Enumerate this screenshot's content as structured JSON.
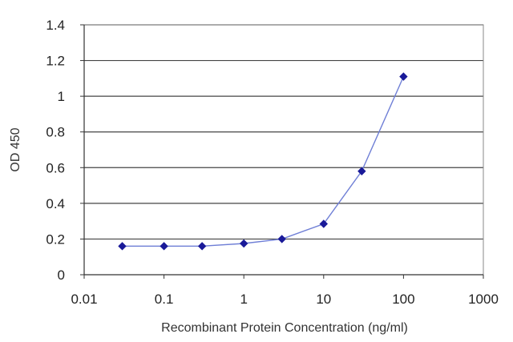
{
  "chart_data": {
    "type": "line",
    "title": "",
    "xlabel": "Recombinant Protein Concentration (ng/ml)",
    "ylabel": "OD 450",
    "x_scale": "log",
    "xlim": [
      0.01,
      1000
    ],
    "ylim": [
      0,
      1.4
    ],
    "x_ticks": [
      0.01,
      0.1,
      1,
      10,
      100,
      1000
    ],
    "x_tick_labels": [
      "0.01",
      "0.1",
      "1",
      "10",
      "100",
      "1000"
    ],
    "y_ticks": [
      0,
      0.2,
      0.4,
      0.6,
      0.8,
      1,
      1.2,
      1.4
    ],
    "y_tick_labels": [
      "0",
      "0.2",
      "0.4",
      "0.6",
      "0.8",
      "1",
      "1.2",
      "1.4"
    ],
    "grid": "horizontal",
    "legend": "none",
    "series": [
      {
        "x": [
          0.03,
          0.1,
          0.3,
          1,
          3,
          10,
          30,
          100
        ],
        "y": [
          0.16,
          0.16,
          0.16,
          0.175,
          0.2,
          0.285,
          0.58,
          1.11
        ],
        "color": "#1a1a99",
        "marker": "diamond",
        "line_color": "#6f7fd6"
      }
    ]
  }
}
